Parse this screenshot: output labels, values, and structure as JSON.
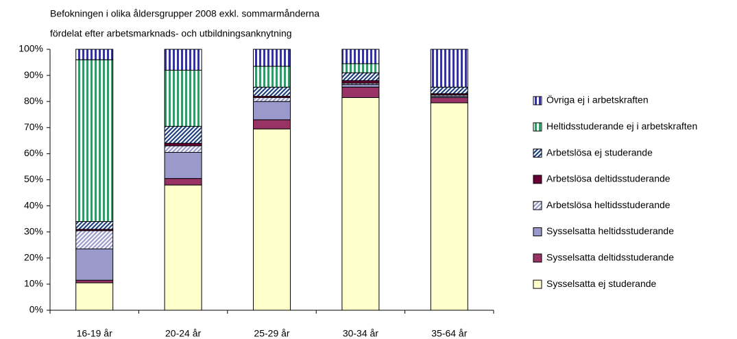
{
  "chart_data": {
    "type": "stacked_bar",
    "title": "Befokningen i olika åldersgrupper 2008 exkl. sommarmånderna",
    "subtitle": "fördelat efter arbetsmarknads- och utbildningsanknytning",
    "categories": [
      "16-19 år",
      "20-24 år",
      "25-29 år",
      "30-34 år",
      "35-64 år"
    ],
    "series": [
      {
        "name": "Sysselsatta ej studerande",
        "color": "#FFFFCC",
        "pattern": "solid",
        "values": [
          10.5,
          48,
          69.5,
          81.5,
          79.5
        ]
      },
      {
        "name": "Sysselsatta deltidsstuderande",
        "color": "#993366",
        "pattern": "solid",
        "values": [
          1,
          2.5,
          3.5,
          4,
          2
        ]
      },
      {
        "name": "Sysselsatta heltidsstuderande",
        "color": "#9999CC",
        "pattern": "solid",
        "values": [
          12,
          10,
          7,
          1,
          0.5
        ]
      },
      {
        "name": "Arbetslösa heltidsstuderande",
        "color": "#9999CC",
        "pattern": "diagonal",
        "values": [
          7,
          2.5,
          1.5,
          0.5,
          0.5
        ]
      },
      {
        "name": "Arbetslösa deltidsstuderande",
        "color": "#660033",
        "pattern": "solid",
        "values": [
          0.5,
          1,
          0.5,
          1,
          0.5
        ]
      },
      {
        "name": "Arbetslösa ej studerande",
        "color": "#1F3F7F",
        "pattern": "diagonal",
        "values": [
          3,
          6.5,
          3.5,
          3,
          2.5
        ]
      },
      {
        "name": "Heltidsstuderande ej i arbetskraften",
        "color": "#339966",
        "pattern": "vertical",
        "values": [
          62,
          21.5,
          8,
          3.5,
          0
        ]
      },
      {
        "name": "Övriga ej i arbetskraften",
        "color": "#333399",
        "pattern": "vertical",
        "values": [
          4,
          8,
          6.5,
          5.5,
          14.5
        ]
      }
    ],
    "ylim": [
      0,
      100
    ],
    "yticks": [
      {
        "value": 0,
        "label": "0%"
      },
      {
        "value": 10,
        "label": "10%"
      },
      {
        "value": 20,
        "label": "20%"
      },
      {
        "value": 30,
        "label": "30%"
      },
      {
        "value": 40,
        "label": "40%"
      },
      {
        "value": 50,
        "label": "50%"
      },
      {
        "value": 60,
        "label": "60%"
      },
      {
        "value": 70,
        "label": "70%"
      },
      {
        "value": 80,
        "label": "80%"
      },
      {
        "value": 90,
        "label": "90%"
      },
      {
        "value": 100,
        "label": "100%"
      }
    ],
    "legend": "right",
    "grid": false
  }
}
